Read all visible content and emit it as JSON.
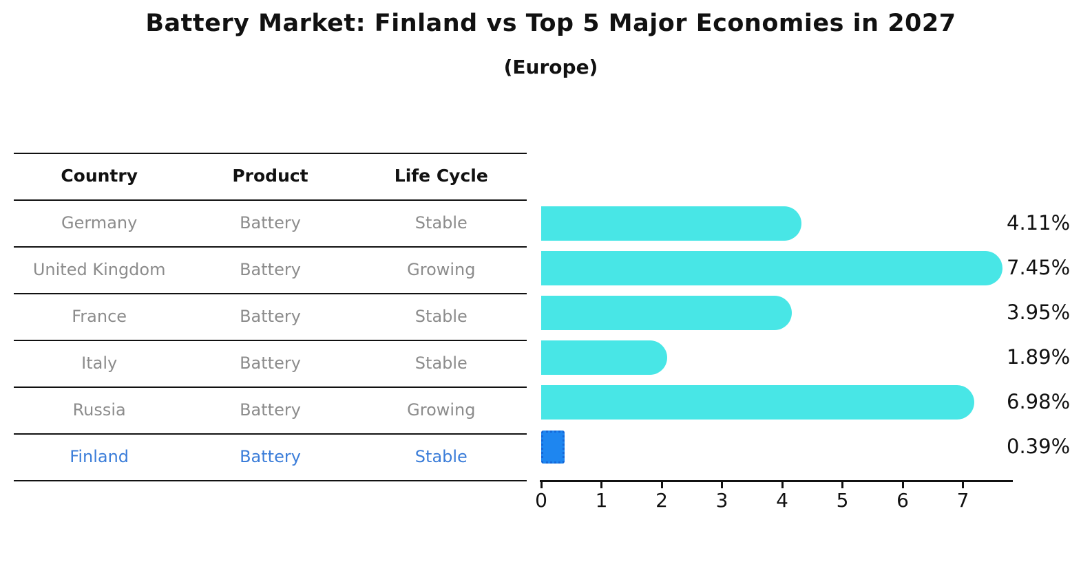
{
  "title": "Battery Market: Finland vs Top 5 Major Economies in 2027",
  "subtitle": "(Europe)",
  "table": {
    "headers": [
      "Country",
      "Product",
      "Life Cycle"
    ],
    "rows": [
      {
        "country": "Germany",
        "product": "Battery",
        "life_cycle": "Stable",
        "highlight": false
      },
      {
        "country": "United Kingdom",
        "product": "Battery",
        "life_cycle": "Growing",
        "highlight": false
      },
      {
        "country": "France",
        "product": "Battery",
        "life_cycle": "Stable",
        "highlight": false
      },
      {
        "country": "Italy",
        "product": "Battery",
        "life_cycle": "Stable",
        "highlight": false
      },
      {
        "country": "Russia",
        "product": "Battery",
        "life_cycle": "Growing",
        "highlight": false
      },
      {
        "country": "Finland",
        "product": "Battery",
        "life_cycle": "Stable",
        "highlight": true
      }
    ]
  },
  "chart_data": {
    "type": "bar",
    "orientation": "horizontal",
    "title": "Battery Market: Finland vs Top 5 Major Economies in 2027",
    "subtitle": "(Europe)",
    "categories": [
      "Germany",
      "United Kingdom",
      "France",
      "Italy",
      "Russia",
      "Finland"
    ],
    "values": [
      4.11,
      7.45,
      3.95,
      1.89,
      6.98,
      0.39
    ],
    "value_labels": [
      "4.11%",
      "7.45%",
      "3.95%",
      "1.89%",
      "6.98%",
      "0.39%"
    ],
    "xlabel": "",
    "ylabel": "",
    "xlim": [
      0,
      7.8
    ],
    "x_ticks": [
      0,
      1,
      2,
      3,
      4,
      5,
      6,
      7
    ],
    "grid": false,
    "legend": false,
    "highlight_index": 5,
    "highlight_note": "Finland bar drawn in blue with dotted square edge; other bars cyan with rounded right caps",
    "colors": {
      "bar_default": "#48e6e6",
      "bar_highlight": "#1e86f0",
      "bar_highlight_border": "#1568d8",
      "highlight_text": "#3b7dd9",
      "table_text": "#8c8c8c",
      "ink": "#111111",
      "background": "#ffffff"
    }
  }
}
